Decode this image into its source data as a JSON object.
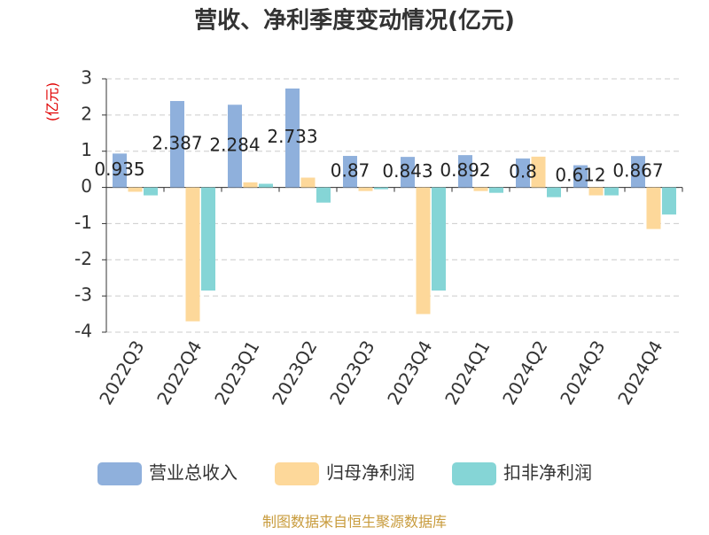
{
  "chart_data": {
    "type": "bar",
    "title": "营收、净利季度变动情况(亿元)",
    "y_label": "(亿元)",
    "categories": [
      "2022Q3",
      "2022Q4",
      "2023Q1",
      "2023Q2",
      "2023Q3",
      "2023Q4",
      "2024Q1",
      "2024Q2",
      "2024Q3",
      "2024Q4"
    ],
    "series": [
      {
        "name": "营业总收入",
        "color": "#8fb0dc",
        "values": [
          0.935,
          2.387,
          2.284,
          2.733,
          0.87,
          0.843,
          0.892,
          0.8,
          0.612,
          0.867
        ],
        "show_labels": true
      },
      {
        "name": "归母净利润",
        "color": "#fdd89a",
        "values": [
          -0.12,
          -3.7,
          0.14,
          0.27,
          -0.1,
          -3.5,
          -0.1,
          0.85,
          -0.22,
          -1.15
        ]
      },
      {
        "name": "扣非净利润",
        "color": "#85d5d6",
        "values": [
          -0.22,
          -2.85,
          0.1,
          -0.42,
          -0.05,
          -2.85,
          -0.15,
          -0.27,
          -0.22,
          -0.75
        ]
      }
    ],
    "ylim": [
      -4,
      3
    ],
    "yticks": [
      -4,
      -3,
      -2,
      -1,
      0,
      1,
      2,
      3
    ],
    "grid": true,
    "legend": "bottom",
    "source": "制图数据来自恒生聚源数据库"
  }
}
